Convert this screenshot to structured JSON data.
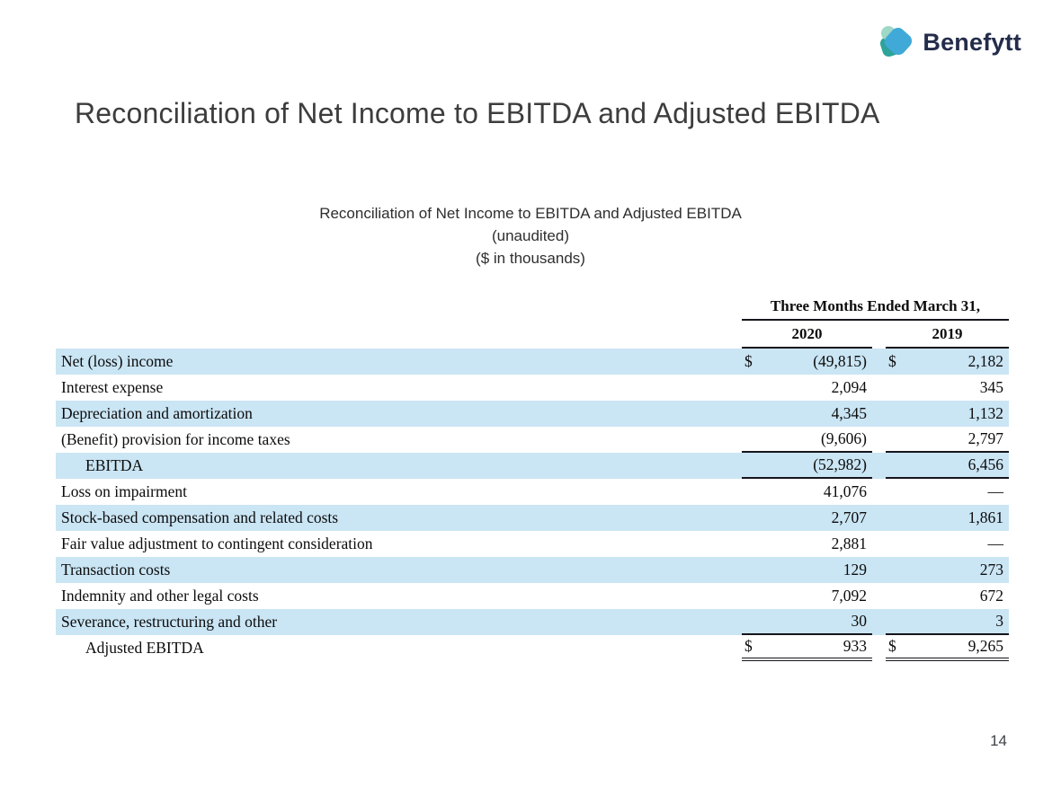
{
  "logo": {
    "brand": "Benefytt"
  },
  "title": "Reconciliation of Net Income to EBITDA and Adjusted EBITDA",
  "subtitle": {
    "line1": "Reconciliation of Net Income to EBITDA and Adjusted EBITDA",
    "line2": "(unaudited)",
    "line3": "($ in thousands)"
  },
  "table": {
    "period_header": "Three Months Ended March 31,",
    "columns": [
      "2020",
      "2019"
    ],
    "rows": [
      {
        "label": "Net (loss) income",
        "indent": false,
        "shaded": true,
        "dollar": true,
        "v2020": "(49,815)",
        "v2019": "2,182",
        "rule": "none"
      },
      {
        "label": "Interest expense",
        "indent": false,
        "shaded": false,
        "dollar": false,
        "v2020": "2,094",
        "v2019": "345",
        "rule": "none"
      },
      {
        "label": "Depreciation and amortization",
        "indent": false,
        "shaded": true,
        "dollar": false,
        "v2020": "4,345",
        "v2019": "1,132",
        "rule": "none"
      },
      {
        "label": "(Benefit) provision for income taxes",
        "indent": false,
        "shaded": false,
        "dollar": false,
        "v2020": "(9,606)",
        "v2019": "2,797",
        "rule": "single"
      },
      {
        "label": "EBITDA",
        "indent": true,
        "shaded": true,
        "dollar": false,
        "v2020": "(52,982)",
        "v2019": "6,456",
        "rule": "single"
      },
      {
        "label": "Loss on impairment",
        "indent": false,
        "shaded": false,
        "dollar": false,
        "v2020": "41,076",
        "v2019": "—",
        "rule": "none"
      },
      {
        "label": "Stock-based compensation and related costs",
        "indent": false,
        "shaded": true,
        "dollar": false,
        "v2020": "2,707",
        "v2019": "1,861",
        "rule": "none"
      },
      {
        "label": "Fair value adjustment to contingent consideration",
        "indent": false,
        "shaded": false,
        "dollar": false,
        "v2020": "2,881",
        "v2019": "—",
        "rule": "none"
      },
      {
        "label": "Transaction costs",
        "indent": false,
        "shaded": true,
        "dollar": false,
        "v2020": "129",
        "v2019": "273",
        "rule": "none"
      },
      {
        "label": "Indemnity and other legal costs",
        "indent": false,
        "shaded": false,
        "dollar": false,
        "v2020": "7,092",
        "v2019": "672",
        "rule": "none"
      },
      {
        "label": "Severance, restructuring and other",
        "indent": false,
        "shaded": true,
        "dollar": false,
        "v2020": "30",
        "v2019": "3",
        "rule": "single"
      },
      {
        "label": "Adjusted EBITDA",
        "indent": true,
        "shaded": false,
        "dollar": true,
        "v2020": "933",
        "v2019": "9,265",
        "rule": "double"
      }
    ]
  },
  "page_number": "14",
  "colors": {
    "row_shade": "#cae5f4",
    "rule": "#15151c",
    "logo_blue": "#41a9d8",
    "logo_mint": "#9fd8c7",
    "logo_teal": "#2ea39b",
    "logo_navy": "#232c4a",
    "title_gray": "#3d3d3d"
  }
}
